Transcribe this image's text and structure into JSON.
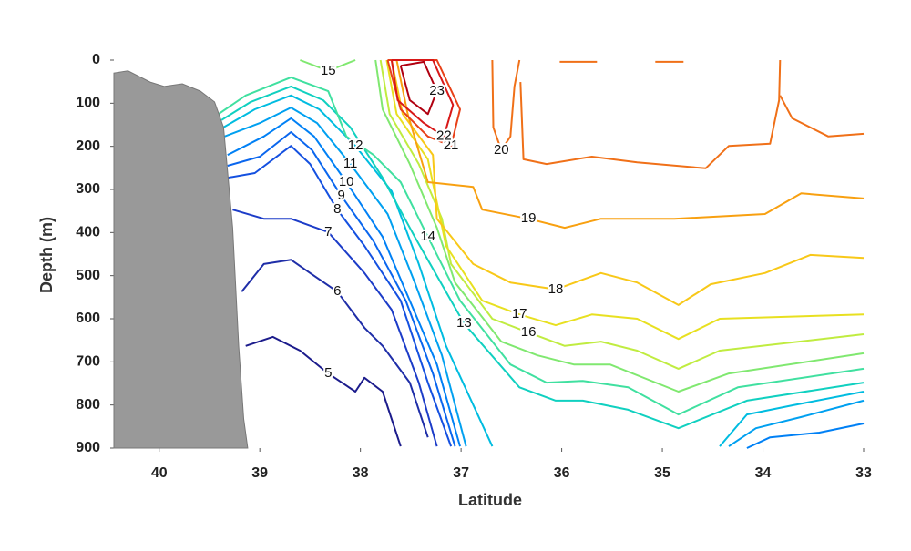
{
  "chart_data": {
    "type": "contour",
    "xlabel": "Latitude",
    "ylabel": "Depth (m)",
    "xlim": [
      40.45,
      33
    ],
    "xticks": [
      40,
      39,
      38,
      37,
      36,
      35,
      34,
      33
    ],
    "ylim": [
      900,
      0
    ],
    "yticks": [
      0,
      100,
      200,
      300,
      400,
      500,
      600,
      700,
      800,
      900
    ],
    "land": {
      "color": "#999999",
      "x": [
        40.45,
        40.45,
        40.31,
        40.09,
        39.95,
        39.77,
        39.59,
        39.45,
        39.36,
        39.27,
        39.21,
        39.16,
        39.12
      ],
      "y": [
        900,
        30,
        25,
        51,
        61,
        55,
        72,
        97,
        156,
        389,
        663,
        832,
        900
      ]
    },
    "contours": [
      {
        "level": 5,
        "color": "#1c1c8c",
        "x": [
          39.14,
          38.87,
          38.6,
          38.32,
          38.05,
          37.96,
          37.78,
          37.6
        ],
        "y": [
          663,
          642,
          674,
          727,
          769,
          737,
          769,
          896
        ]
      },
      {
        "level": 6,
        "color": "#1f2ea8",
        "x": [
          39.18,
          38.96,
          38.69,
          38.5,
          38.23,
          37.96,
          37.78,
          37.51,
          37.33
        ],
        "y": [
          537,
          473,
          463,
          494,
          537,
          621,
          663,
          748,
          875
        ]
      },
      {
        "level": 7,
        "color": "#1c3cc8",
        "x": [
          39.27,
          38.96,
          38.69,
          38.32,
          37.96,
          37.69,
          37.42,
          37.24
        ],
        "y": [
          347,
          368,
          368,
          399,
          494,
          579,
          748,
          896
        ]
      },
      {
        "level": 8,
        "color": "#1450e0",
        "x": [
          39.32,
          39.05,
          38.69,
          38.5,
          38.23,
          37.96,
          37.6,
          37.33,
          37.1
        ],
        "y": [
          273,
          262,
          199,
          241,
          347,
          431,
          558,
          748,
          896
        ]
      },
      {
        "level": 9,
        "color": "#0a66ee",
        "x": [
          39.32,
          39.0,
          38.69,
          38.48,
          38.19,
          37.87,
          37.55,
          37.28,
          37.06
        ],
        "y": [
          245,
          224,
          167,
          209,
          315,
          420,
          558,
          727,
          896
        ]
      },
      {
        "level": 10,
        "color": "#0080f5",
        "x": [
          39.32,
          38.96,
          38.69,
          38.46,
          38.14,
          37.78,
          37.51,
          37.24,
          37.01,
          null,
          34.16,
          33.93,
          33.44,
          33.0
        ],
        "y": [
          220,
          177,
          135,
          177,
          283,
          410,
          558,
          706,
          896,
          null,
          900,
          875,
          864,
          843
        ]
      },
      {
        "level": 11,
        "color": "#00a0f0",
        "x": [
          39.35,
          39.0,
          38.69,
          38.43,
          38.1,
          37.73,
          37.46,
          37.19,
          36.95,
          null,
          34.34,
          34.07,
          33.62,
          33.0
        ],
        "y": [
          177,
          146,
          110,
          146,
          241,
          357,
          516,
          685,
          896,
          null,
          896,
          854,
          828,
          790
        ]
      },
      {
        "level": 12,
        "color": "#00bce0",
        "x": [
          39.36,
          39.05,
          38.69,
          38.41,
          38.05,
          37.69,
          37.42,
          37.15,
          36.69,
          null,
          34.43,
          34.16,
          33.71,
          33.0
        ],
        "y": [
          156,
          114,
          82,
          114,
          199,
          304,
          473,
          663,
          896,
          null,
          896,
          822,
          801,
          769
        ]
      },
      {
        "level": 13,
        "color": "#10d0c0",
        "x": [
          39.38,
          39.09,
          38.69,
          38.37,
          38.1,
          37.78,
          37.46,
          36.97,
          36.42,
          36.06,
          35.79,
          35.34,
          34.84,
          34.16,
          33.0
        ],
        "y": [
          139,
          97,
          61,
          93,
          156,
          273,
          410,
          611,
          759,
          790,
          790,
          811,
          854,
          790,
          748
        ]
      },
      {
        "level": 14,
        "color": "#40e0a0",
        "x": [
          39.41,
          39.14,
          38.69,
          38.32,
          38.14,
          37.87,
          37.6,
          37.33,
          37.01,
          36.51,
          36.15,
          35.79,
          35.34,
          34.84,
          34.25,
          33.0
        ],
        "y": [
          125,
          82,
          40,
          72,
          177,
          220,
          283,
          410,
          558,
          706,
          748,
          744,
          759,
          822,
          759,
          716
        ]
      },
      {
        "level": 15,
        "color": "#80e870",
        "x": [
          38.6,
          38.32,
          38.05,
          null,
          37.85,
          37.78,
          37.51,
          37.24,
          37.06,
          36.6,
          36.24,
          35.88,
          35.52,
          34.84,
          34.34,
          33.0
        ],
        "y": [
          0,
          25,
          0,
          null,
          0,
          114,
          241,
          389,
          516,
          653,
          685,
          706,
          706,
          769,
          727,
          680
        ]
      },
      {
        "level": 16,
        "color": "#c0ec40",
        "x": [
          37.8,
          37.71,
          37.42,
          37.19,
          37.1,
          36.69,
          36.33,
          35.97,
          35.61,
          35.25,
          34.84,
          34.43,
          33.0
        ],
        "y": [
          0,
          125,
          241,
          368,
          473,
          600,
          632,
          663,
          653,
          674,
          716,
          674,
          636
        ]
      },
      {
        "level": 17,
        "color": "#e8e020",
        "x": [
          37.74,
          37.64,
          37.33,
          37.15,
          36.79,
          36.42,
          36.06,
          35.7,
          35.25,
          34.84,
          34.43,
          33.0
        ],
        "y": [
          0,
          125,
          230,
          431,
          558,
          590,
          615,
          590,
          600,
          647,
          600,
          590
        ]
      },
      {
        "level": 18,
        "color": "#f8c818",
        "x": [
          37.69,
          37.58,
          37.28,
          37.24,
          36.88,
          36.51,
          36.06,
          35.61,
          35.25,
          34.84,
          34.52,
          33.98,
          33.53,
          33.0
        ],
        "y": [
          0,
          125,
          220,
          368,
          473,
          516,
          532,
          494,
          516,
          568,
          520,
          494,
          452,
          459
        ]
      },
      {
        "level": 19,
        "color": "#f8a010",
        "x": [
          37.64,
          37.53,
          37.33,
          36.88,
          36.79,
          36.33,
          35.97,
          35.61,
          34.88,
          33.98,
          33.62,
          33.0
        ],
        "y": [
          0,
          125,
          283,
          294,
          347,
          368,
          389,
          368,
          368,
          357,
          309,
          321
        ]
      },
      {
        "level": 20,
        "color": "#f07018",
        "x": [
          36.69,
          36.68,
          36.6,
          36.51,
          36.47,
          36.42,
          null,
          36.41,
          36.38,
          36.15,
          35.7,
          35.25,
          34.57,
          34.34,
          33.93,
          33.84,
          33.83,
          null,
          33.83,
          33.71,
          33.35,
          33.0,
          null,
          36.02,
          35.65,
          null,
          35.07,
          34.79
        ],
        "y": [
          0,
          156,
          209,
          177,
          61,
          0,
          null,
          51,
          230,
          241,
          224,
          237,
          251,
          199,
          194,
          93,
          0,
          null,
          82,
          135,
          177,
          171,
          null,
          4,
          4,
          null,
          4,
          4
        ]
      },
      {
        "level": 21,
        "color": "#e84018",
        "x": [
          37.73,
          37.24,
          37.01,
          37.1,
          37.33,
          37.6,
          37.73
        ],
        "y": [
          0,
          0,
          114,
          199,
          177,
          114,
          0
        ]
      },
      {
        "level": 22,
        "color": "#d81818",
        "x": [
          37.69,
          37.28,
          37.08,
          37.17,
          37.37,
          37.63,
          37.69
        ],
        "y": [
          0,
          0,
          104,
          177,
          146,
          93,
          0
        ]
      },
      {
        "level": 23,
        "color": "#b00010",
        "x": [
          37.6,
          37.37,
          37.24,
          37.33,
          37.51,
          37.6
        ],
        "y": [
          13,
          4,
          72,
          125,
          93,
          13
        ]
      }
    ]
  }
}
